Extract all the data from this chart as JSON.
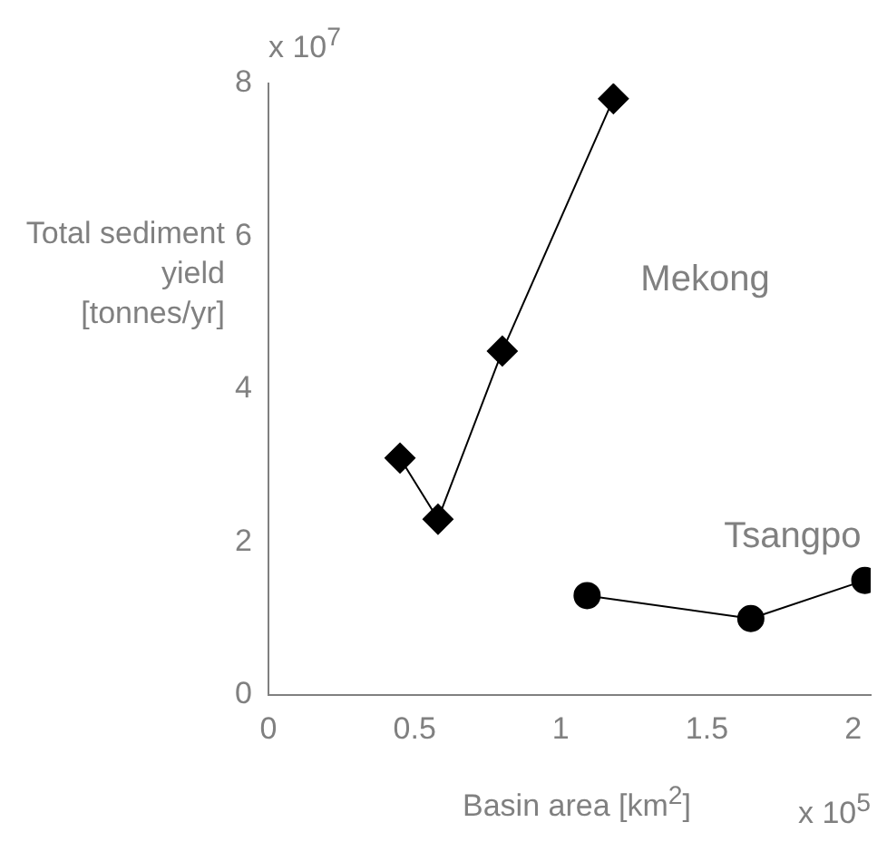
{
  "chart_data": {
    "type": "line",
    "xlabel": "Basin area [km$^{2}$]",
    "ylabel": "Total sediment yield [tonnes/yr]",
    "xlim": [
      0,
      2.06
    ],
    "xticks": [
      0,
      0.5,
      1,
      1.5,
      2
    ],
    "ylim": [
      0,
      8
    ],
    "yticks": [
      0,
      2,
      4,
      6,
      8
    ],
    "grid": false,
    "legend": false,
    "line_style": "solid",
    "series": [
      {
        "name": "Mekong",
        "color": "#000000",
        "marker": "diamond",
        "x": [
          0.45,
          0.58,
          0.8,
          1.18
        ],
        "values": [
          3.1,
          2.3,
          4.5,
          7.8
        ]
      },
      {
        "name": "Tsangpo",
        "color": "#000000",
        "marker": "circle",
        "x": [
          1.09,
          1.65,
          2.04
        ],
        "values": [
          1.3,
          1.0,
          1.5
        ]
      }
    ],
    "annotations": [
      "x 10$^{7}$",
      "x 10$^{5}$"
    ]
  }
}
